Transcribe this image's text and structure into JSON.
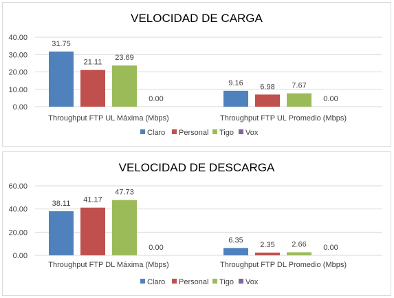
{
  "colors": {
    "Claro": "#4f81bd",
    "Personal": "#c0504d",
    "Tigo": "#9bbb59",
    "Vox": "#8064a2"
  },
  "chart_data": [
    {
      "type": "bar",
      "title": "VELOCIDAD DE CARGA",
      "categories": [
        "Throughput FTP UL Máxima (Mbps)",
        "Throughput FTP UL Promedio (Mbps)"
      ],
      "series": [
        {
          "name": "Claro",
          "values": [
            31.75,
            9.16
          ],
          "labels": [
            "31.75",
            "9.16"
          ]
        },
        {
          "name": "Personal",
          "values": [
            21.11,
            6.98
          ],
          "labels": [
            "21.11",
            "6.98"
          ]
        },
        {
          "name": "Tigo",
          "values": [
            23.69,
            7.67
          ],
          "labels": [
            "23.69",
            "7.67"
          ]
        },
        {
          "name": "Vox",
          "values": [
            0.0,
            0.0
          ],
          "labels": [
            "0.00",
            "0.00"
          ]
        }
      ],
      "ylim": [
        0,
        40
      ],
      "yticks": [
        0,
        10,
        20,
        30,
        40
      ],
      "ytick_labels": [
        "0.00",
        "10.00",
        "20.00",
        "30.00",
        "40.00"
      ],
      "grid": true,
      "legend": "bottom"
    },
    {
      "type": "bar",
      "title": "VELOCIDAD DE DESCARGA",
      "categories": [
        "Throughput FTP DL Máxima (Mbps)",
        "Throughput FTP DL Promedio (Mbps)"
      ],
      "series": [
        {
          "name": "Claro",
          "values": [
            38.11,
            6.35
          ],
          "labels": [
            "38.11",
            "6.35"
          ]
        },
        {
          "name": "Personal",
          "values": [
            41.17,
            2.35
          ],
          "labels": [
            "41.17",
            "2.35"
          ]
        },
        {
          "name": "Tigo",
          "values": [
            47.73,
            2.66
          ],
          "labels": [
            "47.73",
            "2.66"
          ]
        },
        {
          "name": "Vox",
          "values": [
            0.0,
            0.0
          ],
          "labels": [
            "0.00",
            "0.00"
          ]
        }
      ],
      "ylim": [
        0,
        60
      ],
      "yticks": [
        0,
        20,
        40,
        60
      ],
      "ytick_labels": [
        "0.00",
        "20.00",
        "40.00",
        "60.00"
      ],
      "grid": true,
      "legend": "bottom"
    }
  ]
}
